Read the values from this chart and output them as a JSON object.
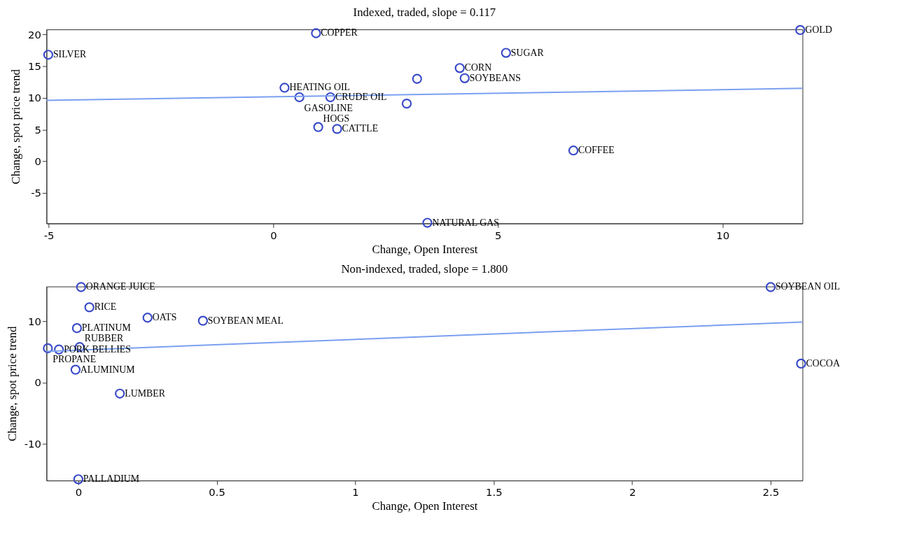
{
  "chart_data": [
    {
      "type": "scatter",
      "title": "Indexed, traded, slope = 0.117",
      "xlabel": "Change, Open Interest",
      "ylabel": "Change, spot price trend",
      "xlim": [
        -5.05,
        11.78
      ],
      "ylim": [
        -9.8,
        20.8
      ],
      "xticks": [
        -5,
        0,
        5,
        10
      ],
      "yticks": [
        -5,
        0,
        5,
        10,
        15,
        20
      ],
      "grid": false,
      "series": [
        {
          "marker": "circle",
          "color": "#3a4bc8",
          "x": [
            -5.01,
            0.95,
            11.73,
            5.18,
            4.15,
            4.26,
            3.2,
            0.25,
            0.58,
            1.27,
            2.97,
            1.0,
            1.42,
            6.68,
            3.43
          ],
          "values": [
            16.8,
            20.2,
            20.7,
            17.1,
            14.7,
            13.1,
            13.0,
            11.6,
            10.1,
            10.1,
            9.1,
            5.4,
            5.1,
            1.7,
            -9.7
          ]
        },
        {
          "type": "line",
          "marker": "none",
          "line_style": "solid",
          "color": "#7aa0f0",
          "x": [
            -5.05,
            11.78
          ],
          "values": [
            9.6,
            11.5
          ]
        }
      ],
      "annotations": [
        {
          "text": "SILVER",
          "x": -5.01,
          "y": 16.8
        },
        {
          "text": "COPPER",
          "x": 0.95,
          "y": 20.2
        },
        {
          "text": "GOLD",
          "x": 11.73,
          "y": 20.7
        },
        {
          "text": "SUGAR",
          "x": 5.18,
          "y": 17.1
        },
        {
          "text": "CORN",
          "x": 4.15,
          "y": 14.7
        },
        {
          "text": "SOYBEANS",
          "x": 4.26,
          "y": 13.1
        },
        {
          "text": "HEATING OIL",
          "x": 0.25,
          "y": 11.6
        },
        {
          "text": "GASOLINE",
          "x": 0.58,
          "y": 10.1
        },
        {
          "text": "CRUDE OIL",
          "x": 1.27,
          "y": 10.1
        },
        {
          "text": "HOGS",
          "x": 1.0,
          "y": 5.4
        },
        {
          "text": "CATTLE",
          "x": 1.42,
          "y": 5.1
        },
        {
          "text": "COFFEE",
          "x": 6.68,
          "y": 1.7
        },
        {
          "text": "NATURAL GAS",
          "x": 3.43,
          "y": -9.7
        }
      ]
    },
    {
      "type": "scatter",
      "title": "Non-indexed, traded, slope = 1.800",
      "xlabel": "Change, Open Interest",
      "ylabel": "Change, spot price trend",
      "xlim": [
        -0.115,
        2.615
      ],
      "ylim": [
        -16,
        15.7
      ],
      "xticks": [
        0,
        0.5,
        1,
        1.5,
        2,
        2.5
      ],
      "yticks": [
        -10,
        0,
        10
      ],
      "grid": false,
      "series": [
        {
          "marker": "circle",
          "color": "#3a4bc8",
          "x": [
            0.01,
            0.04,
            0.25,
            0.45,
            -0.005,
            -0.11,
            -0.07,
            0.005,
            -0.01,
            0.15,
            0.0,
            2.5,
            2.61
          ],
          "values": [
            15.6,
            12.3,
            10.6,
            10.1,
            8.9,
            5.6,
            5.4,
            5.8,
            2.1,
            -1.8,
            -15.8,
            15.6,
            3.1
          ]
        },
        {
          "type": "line",
          "marker": "none",
          "line_style": "solid",
          "color": "#7aa0f0",
          "x": [
            -0.115,
            2.615
          ],
          "values": [
            5.1,
            9.9
          ]
        }
      ],
      "annotations": [
        {
          "text": "ORANGE JUICE",
          "x": 0.01,
          "y": 15.6
        },
        {
          "text": "RICE",
          "x": 0.04,
          "y": 12.3
        },
        {
          "text": "OATS",
          "x": 0.25,
          "y": 10.6
        },
        {
          "text": "SOYBEAN MEAL",
          "x": 0.45,
          "y": 10.1
        },
        {
          "text": "PLATINUM",
          "x": -0.005,
          "y": 8.9
        },
        {
          "text": "PROPANE",
          "x": -0.11,
          "y": 5.6
        },
        {
          "text": "PORK BELLIES",
          "x": -0.07,
          "y": 5.4
        },
        {
          "text": "RUBBER",
          "x": 0.005,
          "y": 5.8
        },
        {
          "text": "ALUMINUM",
          "x": -0.01,
          "y": 2.1
        },
        {
          "text": "LUMBER",
          "x": 0.15,
          "y": -1.8
        },
        {
          "text": "PALLADIUM",
          "x": 0.0,
          "y": -15.8
        },
        {
          "text": "SOYBEAN OIL",
          "x": 2.5,
          "y": 15.6
        },
        {
          "text": "COCOA",
          "x": 2.61,
          "y": 3.1
        }
      ]
    }
  ]
}
